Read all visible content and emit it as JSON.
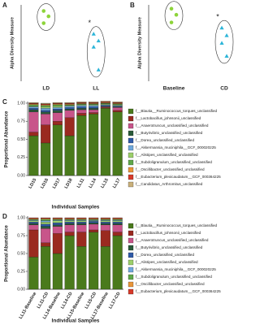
{
  "chart_data": [
    {
      "type": "strip",
      "label": "A",
      "y_label": "Alpha Diversity Measure",
      "ylim": [
        0,
        1
      ],
      "groups": [
        {
          "label": "LD",
          "values": [
            0.92,
            0.85,
            0.76
          ],
          "color": "#8dd43a",
          "marker": "circle"
        },
        {
          "label": "LL",
          "values": [
            0.62,
            0.53,
            0.45,
            0.15
          ],
          "color": "#2cb5d8",
          "marker": "triangle",
          "annotation": "*"
        }
      ]
    },
    {
      "type": "strip",
      "label": "B",
      "y_label": "Alpha Diversity Measure",
      "ylim": [
        0,
        1
      ],
      "groups": [
        {
          "label": "Baseline",
          "values": [
            0.95,
            0.87,
            0.77
          ],
          "color": "#8dd43a",
          "marker": "circle"
        },
        {
          "label": "CD",
          "values": [
            0.7,
            0.6,
            0.5,
            0.33
          ],
          "color": "#2cb5d8",
          "marker": "triangle",
          "annotation": "*"
        }
      ]
    },
    {
      "type": "stacked_bar",
      "label": "C",
      "y_label": "Proportional Abundance",
      "x_label": "Individual Samples",
      "ylim": [
        0,
        1
      ],
      "yticks": [
        {
          "value": 0,
          "label": "0.00"
        },
        {
          "value": 0.25,
          "label": "0.25"
        },
        {
          "value": 0.5,
          "label": "0.50"
        },
        {
          "value": 0.75,
          "label": "0.75"
        },
        {
          "value": 1,
          "label": "1.00"
        }
      ],
      "categories": [
        "LD15",
        "LD16",
        "LD17",
        "LD18",
        "LL11",
        "LL14",
        "LL15",
        "LL17"
      ],
      "series": [
        {
          "name": "f__Blautia__Ruminococcus_torques_unclassified",
          "color": "#4a7a1c",
          "values": [
            0.55,
            0.45,
            0.7,
            0.55,
            0.83,
            0.85,
            0.93,
            0.88
          ]
        },
        {
          "name": "f__Lactobacillus_johnsonii_unclassified",
          "color": "#9a2a20",
          "values": [
            0.05,
            0.25,
            0.05,
            0.25,
            0.03,
            0.02,
            0.01,
            0.02
          ]
        },
        {
          "name": "f__Anaerotruncus_unclassified_unclassified",
          "color": "#c8558a",
          "values": [
            0.28,
            0.15,
            0.12,
            0.1,
            0.05,
            0.04,
            0.01,
            0.04
          ]
        },
        {
          "name": "f__Butyrivibrio_unclassified_unclassified",
          "color": "#2a5a3a",
          "values": [
            0.03,
            0.03,
            0.03,
            0.02,
            0.02,
            0.02,
            0.01,
            0.01
          ]
        },
        {
          "name": "f__Dorea_unclassified_unclassified",
          "color": "#2f5aa8",
          "values": [
            0.02,
            0.02,
            0.02,
            0.02,
            0.02,
            0.02,
            0.01,
            0.01
          ]
        },
        {
          "name": "f__Akkermansia_muciniphila__GCF_000020225",
          "color": "#6fa8dc",
          "values": [
            0.02,
            0.03,
            0.02,
            0.02,
            0.02,
            0.02,
            0.01,
            0.01
          ]
        },
        {
          "name": "f__Alistipes_unclassified_unclassified",
          "color": "#9ccf6a",
          "values": [
            0.01,
            0.02,
            0.02,
            0.01,
            0.01,
            0.01,
            0.01,
            0.01
          ]
        },
        {
          "name": "f__Subdoligranulum_unclassified_unclassified",
          "color": "#5fa84a",
          "values": [
            0.02,
            0.02,
            0.02,
            0.01,
            0.01,
            0.01,
            0.01,
            0.01
          ]
        },
        {
          "name": "f__Oscillibacter_unclassified_unclassified",
          "color": "#e8953a",
          "values": [
            0.01,
            0.01,
            0.01,
            0.01,
            0.01,
            0.01,
            0.01,
            0.01
          ]
        },
        {
          "name": "f__Eubacterium_plexicaudatum__GCF_000364225",
          "color": "#d63a2a",
          "values": [
            0.01,
            0.01,
            0.01,
            0.01,
            0.01,
            0.01,
            0.01,
            0.01
          ]
        },
        {
          "name": "f__Candidatus_Arthromitus_unclassified",
          "color": "#c9b07a",
          "values": [
            0.01,
            0.01,
            0.01,
            0.01,
            0.01,
            0.01,
            0.01,
            0.01
          ]
        }
      ]
    },
    {
      "type": "stacked_bar",
      "label": "D",
      "y_label": "Proportional Abundance",
      "x_label": "Individual Samples",
      "ylim": [
        0,
        1
      ],
      "yticks": [
        {
          "value": 0,
          "label": "0.00"
        },
        {
          "value": 0.25,
          "label": "0.25"
        },
        {
          "value": 0.5,
          "label": "0.50"
        },
        {
          "value": 0.75,
          "label": "0.75"
        },
        {
          "value": 1,
          "label": "1.00"
        }
      ],
      "categories": [
        "LL11-Baseline",
        "LL11-CD",
        "LL14-Baseline",
        "LL14-CD",
        "LL15-Baseline",
        "LL15-CD",
        "LL17-Baseline",
        "LL17-CD"
      ],
      "series": [
        {
          "name": "f__Blautia__Ruminococcus_torques_unclassified",
          "color": "#4a7a1c",
          "values": [
            0.45,
            0.6,
            0.5,
            0.75,
            0.6,
            0.8,
            0.6,
            0.75
          ]
        },
        {
          "name": "f__Lactobacillus_johnsonii_unclassified",
          "color": "#9a2a20",
          "values": [
            0.38,
            0.05,
            0.28,
            0.05,
            0.2,
            0.03,
            0.22,
            0.05
          ]
        },
        {
          "name": "f__Anaerotruncus_unclassified_unclassified",
          "color": "#c8558a",
          "values": [
            0.07,
            0.2,
            0.1,
            0.1,
            0.1,
            0.08,
            0.08,
            0.1
          ]
        },
        {
          "name": "f__Butyrivibrio_unclassified_unclassified",
          "color": "#2a5a3a",
          "values": [
            0.02,
            0.03,
            0.02,
            0.02,
            0.02,
            0.02,
            0.02,
            0.02
          ]
        },
        {
          "name": "f__Dorea_unclassified_unclassified",
          "color": "#2f5aa8",
          "values": [
            0.02,
            0.03,
            0.03,
            0.02,
            0.02,
            0.02,
            0.02,
            0.02
          ]
        },
        {
          "name": "f__Alistipes_unclassified_unclassified",
          "color": "#9ccf6a",
          "values": [
            0.02,
            0.03,
            0.03,
            0.02,
            0.02,
            0.01,
            0.02,
            0.02
          ]
        },
        {
          "name": "f__Akkermansia_muciniphila__GCF_000020225",
          "color": "#6fa8dc",
          "values": [
            0.01,
            0.02,
            0.01,
            0.01,
            0.01,
            0.01,
            0.01,
            0.01
          ]
        },
        {
          "name": "f__Subdoligranulum_unclassified_unclassified",
          "color": "#5fa84a",
          "values": [
            0.01,
            0.02,
            0.01,
            0.01,
            0.01,
            0.01,
            0.01,
            0.01
          ]
        },
        {
          "name": "f__Oscillibacter_unclassified_unclassified",
          "color": "#e8953a",
          "values": [
            0.01,
            0.01,
            0.01,
            0.01,
            0.01,
            0.01,
            0.01,
            0.01
          ]
        },
        {
          "name": "f__Eubacterium_plexicaudatum__GCF_000364225",
          "color": "#d63a2a",
          "values": [
            0.01,
            0.01,
            0.01,
            0.01,
            0.01,
            0.01,
            0.01,
            0.01
          ]
        }
      ]
    }
  ]
}
